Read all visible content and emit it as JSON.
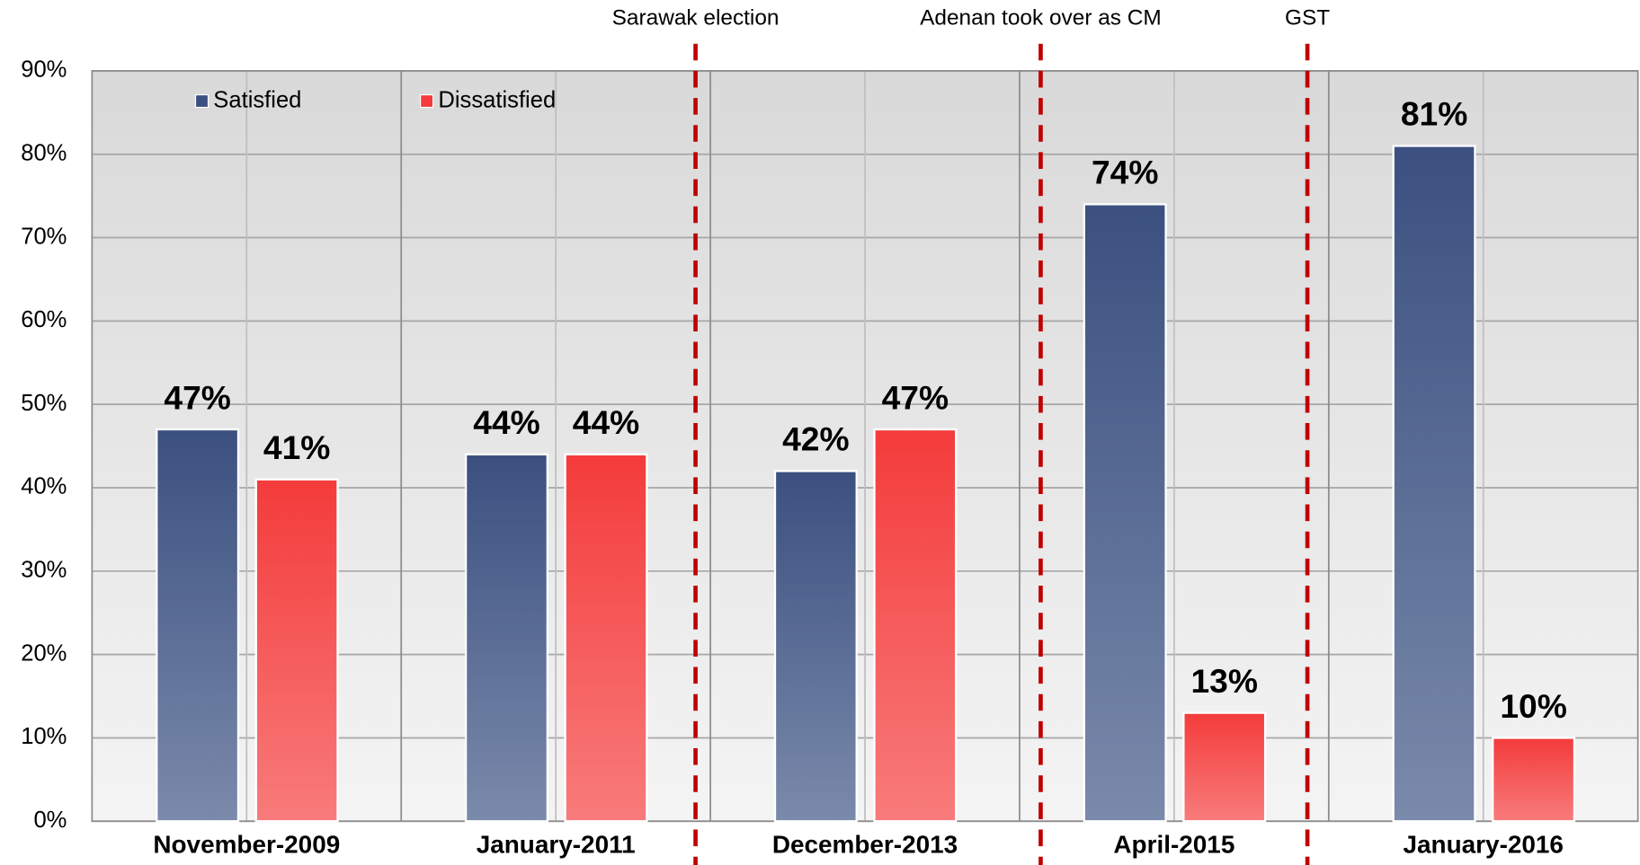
{
  "chart_data": {
    "type": "bar",
    "categories": [
      "November-2009",
      "January-2011",
      "December-2013",
      "April-2015",
      "January-2016"
    ],
    "series": [
      {
        "name": "Satisfied",
        "color": "#3b5080",
        "values": [
          47,
          44,
          42,
          74,
          81
        ],
        "value_labels": [
          "47%",
          "44%",
          "42%",
          "74%",
          "81%"
        ]
      },
      {
        "name": "Dissatisfied",
        "color": "#f43b3b",
        "values": [
          41,
          44,
          47,
          13,
          10
        ],
        "value_labels": [
          "41%",
          "44%",
          "47%",
          "13%",
          "10%"
        ]
      }
    ],
    "ylim": [
      0,
      90
    ],
    "yticks": [
      {
        "value": 0,
        "label": "0%"
      },
      {
        "value": 10,
        "label": "10%"
      },
      {
        "value": 20,
        "label": "20%"
      },
      {
        "value": 30,
        "label": "30%"
      },
      {
        "value": 40,
        "label": "40%"
      },
      {
        "value": 50,
        "label": "50%"
      },
      {
        "value": 60,
        "label": "60%"
      },
      {
        "value": 70,
        "label": "70%"
      },
      {
        "value": 80,
        "label": "80%"
      },
      {
        "value": 90,
        "label": "90%"
      }
    ],
    "grid": true,
    "legend": "top-left",
    "annotations": [
      {
        "text": "Sarawak election"
      },
      {
        "text": "Adenan took over as CM"
      },
      {
        "text": "GST"
      }
    ]
  }
}
